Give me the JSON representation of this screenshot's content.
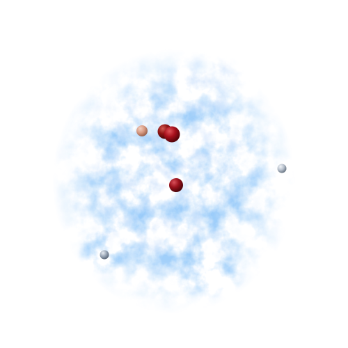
{
  "scene": {
    "background_color": "#ffffff",
    "cloud": {
      "color": "#3a86f0",
      "color_light": "#8fb8f5"
    },
    "spheres": [
      {
        "name": "sphere-tan",
        "color": "#d79a82",
        "size": "small"
      },
      {
        "name": "sphere-red-back",
        "color": "#8f1414",
        "size": "large"
      },
      {
        "name": "sphere-red-front",
        "color": "#a8101c",
        "size": "large"
      },
      {
        "name": "sphere-red-center",
        "color": "#9a121c",
        "size": "medium"
      },
      {
        "name": "sphere-gray-right",
        "color": "#b7c0cc",
        "size": "small"
      },
      {
        "name": "sphere-gray-left",
        "color": "#9aa6b6",
        "size": "small"
      }
    ]
  }
}
